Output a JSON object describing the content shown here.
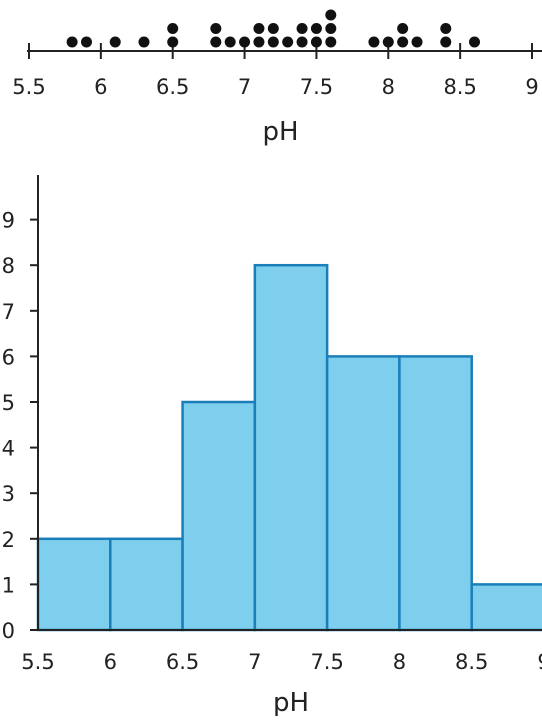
{
  "chart_data": [
    {
      "type": "scatter",
      "subtype": "dot-plot",
      "xlabel": "pH",
      "xlim": [
        5.5,
        9
      ],
      "xticks": [
        "5.5",
        "6",
        "6.5",
        "7",
        "7.5",
        "8",
        "8.5",
        "9"
      ],
      "grid": false,
      "color": "#111111",
      "points": [
        {
          "x": 5.8,
          "count": 1
        },
        {
          "x": 5.9,
          "count": 1
        },
        {
          "x": 6.1,
          "count": 1
        },
        {
          "x": 6.3,
          "count": 1
        },
        {
          "x": 6.5,
          "count": 2
        },
        {
          "x": 6.8,
          "count": 2
        },
        {
          "x": 6.9,
          "count": 1
        },
        {
          "x": 7.0,
          "count": 1
        },
        {
          "x": 7.1,
          "count": 2
        },
        {
          "x": 7.2,
          "count": 2
        },
        {
          "x": 7.3,
          "count": 1
        },
        {
          "x": 7.4,
          "count": 2
        },
        {
          "x": 7.5,
          "count": 2
        },
        {
          "x": 7.6,
          "count": 3
        },
        {
          "x": 7.9,
          "count": 1
        },
        {
          "x": 8.0,
          "count": 1
        },
        {
          "x": 8.1,
          "count": 2
        },
        {
          "x": 8.2,
          "count": 1
        },
        {
          "x": 8.4,
          "count": 2
        },
        {
          "x": 8.6,
          "count": 1
        }
      ]
    },
    {
      "type": "bar",
      "subtype": "histogram",
      "xlabel": "pH",
      "ylabel": "",
      "xlim": [
        5.5,
        9
      ],
      "ylim": [
        0,
        9
      ],
      "xticks": [
        "5.5",
        "6",
        "6.5",
        "7",
        "7.5",
        "8",
        "8.5",
        "9"
      ],
      "yticks": [
        "0",
        "1",
        "2",
        "3",
        "4",
        "5",
        "6",
        "7",
        "8",
        "9"
      ],
      "grid": false,
      "bin_edges": [
        5.5,
        6,
        6.5,
        7,
        7.5,
        8,
        8.5,
        9
      ],
      "values": [
        2,
        2,
        5,
        8,
        6,
        6,
        1
      ],
      "fill_color": "#7dcfed",
      "edge_color": "#1a7fb8"
    }
  ]
}
